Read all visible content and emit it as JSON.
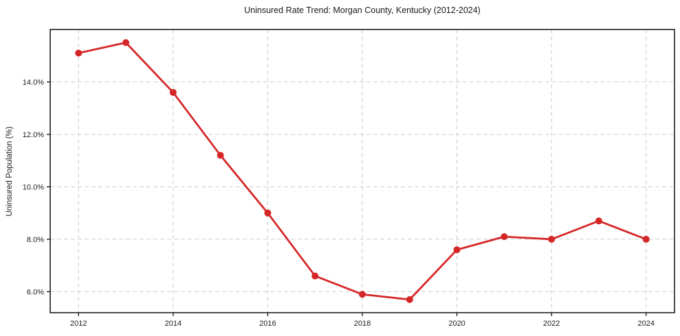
{
  "chart_data": {
    "type": "line",
    "title": "Uninsured Rate Trend: Morgan County, Kentucky (2012-2024)",
    "xlabel": "",
    "ylabel": "Uninsured Population (%)",
    "x": [
      2012,
      2013,
      2014,
      2015,
      2016,
      2017,
      2018,
      2019,
      2020,
      2021,
      2022,
      2023,
      2024
    ],
    "values": [
      15.1,
      15.5,
      13.6,
      11.2,
      9.0,
      6.6,
      5.9,
      5.7,
      7.6,
      8.1,
      8.0,
      8.7,
      8.0
    ],
    "xlim": [
      2011.4,
      2024.6
    ],
    "ylim": [
      5.2,
      16.0
    ],
    "xticks": [
      2012,
      2014,
      2016,
      2018,
      2020,
      2022,
      2024
    ],
    "xtick_labels": [
      "2012",
      "2014",
      "2016",
      "2018",
      "2020",
      "2022",
      "2024"
    ],
    "yticks": [
      6,
      8,
      10,
      12,
      14
    ],
    "ytick_labels": [
      "6.0%",
      "8.0%",
      "10.0%",
      "12.0%",
      "14.0%"
    ],
    "grid": true,
    "grid_style": "dashed",
    "legend": false,
    "line_color": "#d62728",
    "marker": "circle",
    "grid_color": "#cccccc",
    "spine_color": "#000000",
    "text_color": "#1a1a1a"
  }
}
